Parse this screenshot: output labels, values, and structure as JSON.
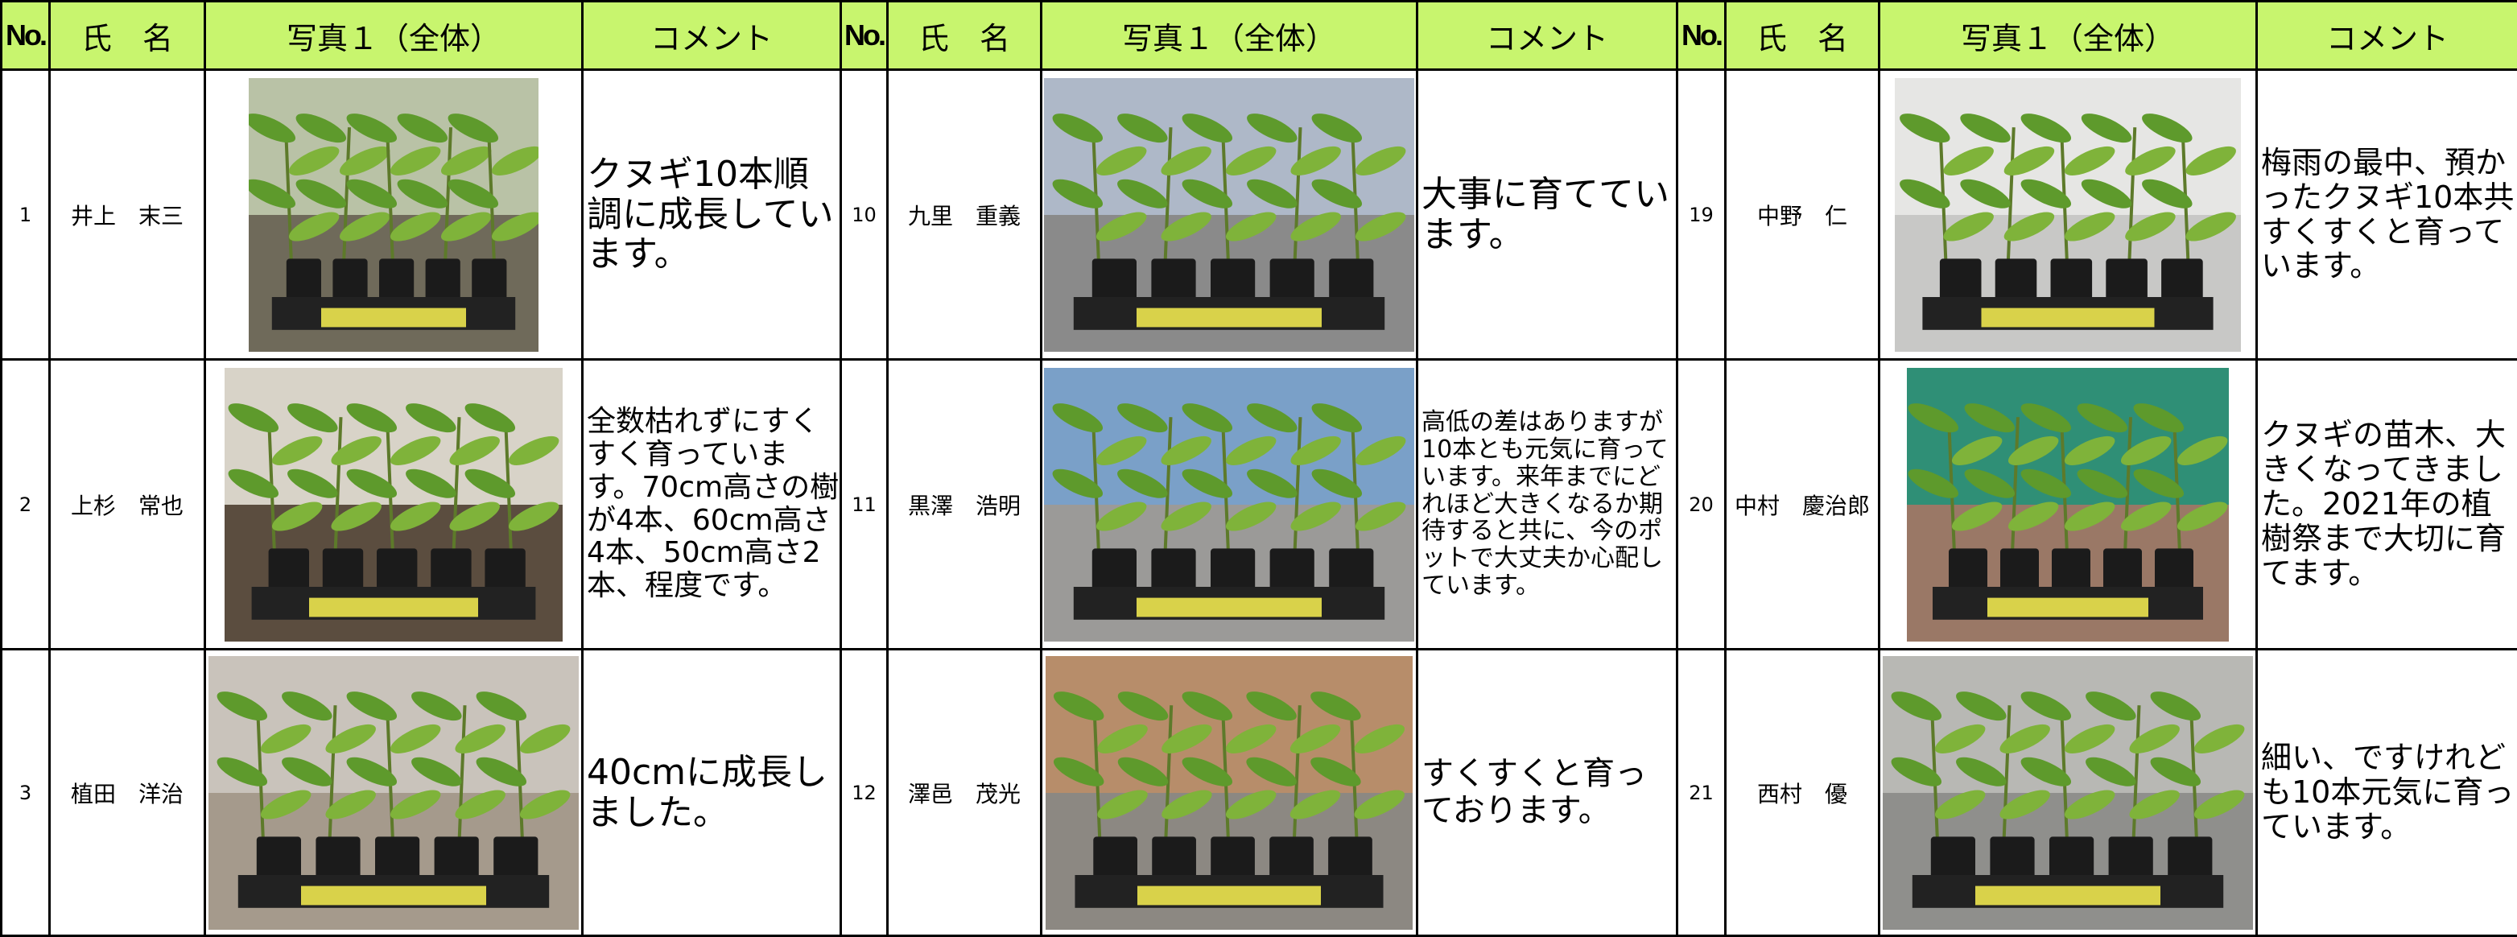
{
  "header": [
    "No.",
    "氏　名",
    "写真１（全体）",
    "コメント"
  ],
  "entries": [
    {
      "no": 1,
      "name": "井上　末三",
      "comment": "クヌギ10本順調に成長しています。"
    },
    {
      "no": 2,
      "name": "上杉　常也",
      "comment": "全数枯れずにすくすく育っています。70cm高さの樹が4本、60cm高さ4本、50cm高さ2本、程度です。"
    },
    {
      "no": 3,
      "name": "植田　洋治",
      "comment": "40cmに成長しました。"
    },
    {
      "no": 10,
      "name": "九里　重義",
      "comment": "大事に育てています。"
    },
    {
      "no": 11,
      "name": "黒澤　浩明",
      "comment": "高低の差はありますが10本とも元気に育っています。来年までにどれほど大きくなるか期待すると共に、今のポットで大丈夫か心配しています。"
    },
    {
      "no": 12,
      "name": "澤邑　茂光",
      "comment": "すくすくと育っております。"
    },
    {
      "no": 19,
      "name": "中野　仁",
      "comment": "梅雨の最中、預かったクヌギ10本共すくすくと育っています。"
    },
    {
      "no": 20,
      "name": "中村　慶治郎",
      "comment": "クヌギの苗木、大きくなってきました。2021年の植樹祭まで大切に育てます。"
    },
    {
      "no": 21,
      "name": "西村　優",
      "comment": "細い、ですけれども10本元気に育っています。"
    }
  ]
}
